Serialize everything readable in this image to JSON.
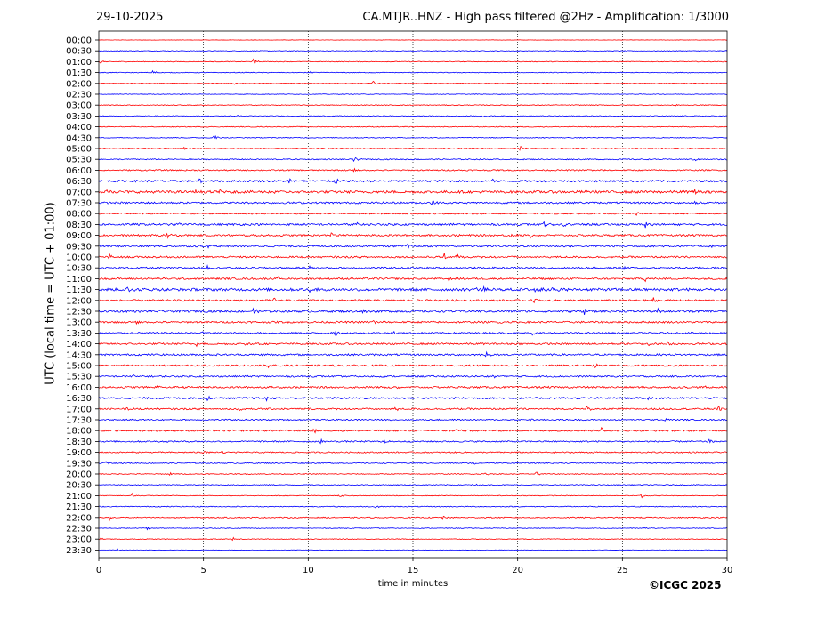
{
  "header": {
    "date": "29-10-2025",
    "title": "CA.MTJR..HNZ - High pass filtered @2Hz - Amplification: 1/3000"
  },
  "footer": {
    "copyright": "©ICGC 2025"
  },
  "chart_data": {
    "type": "line",
    "title": "CA.MTJR..HNZ - High pass filtered @2Hz - Amplification: 1/3000",
    "xlabel": "time in minutes",
    "ylabel": "UTC (local time = UTC + 01:00)",
    "xlim": [
      0,
      30
    ],
    "x_ticks": [
      0,
      5,
      10,
      15,
      20,
      25,
      30
    ],
    "grid": "vertical dotted at each x tick",
    "colors": {
      "even_row": "#ff0000",
      "odd_row": "#0000ff"
    },
    "rows": [
      "00:00",
      "00:30",
      "01:00",
      "01:30",
      "02:00",
      "02:30",
      "03:00",
      "03:30",
      "04:00",
      "04:30",
      "05:00",
      "05:30",
      "06:00",
      "06:30",
      "07:00",
      "07:30",
      "08:00",
      "08:30",
      "09:00",
      "09:30",
      "10:00",
      "10:30",
      "11:00",
      "11:30",
      "12:00",
      "12:30",
      "13:00",
      "13:30",
      "14:00",
      "14:30",
      "15:00",
      "15:30",
      "16:00",
      "16:30",
      "17:00",
      "17:30",
      "18:00",
      "18:30",
      "19:00",
      "19:30",
      "20:00",
      "20:30",
      "21:00",
      "21:30",
      "22:00",
      "22:30",
      "23:00",
      "23:30"
    ],
    "noise_level": [
      0.04,
      0.07,
      0.08,
      0.08,
      0.07,
      0.07,
      0.09,
      0.09,
      0.09,
      0.09,
      0.1,
      0.12,
      0.14,
      0.22,
      0.28,
      0.2,
      0.14,
      0.22,
      0.2,
      0.2,
      0.2,
      0.18,
      0.2,
      0.3,
      0.2,
      0.24,
      0.2,
      0.18,
      0.2,
      0.2,
      0.18,
      0.18,
      0.2,
      0.2,
      0.18,
      0.14,
      0.18,
      0.16,
      0.14,
      0.12,
      0.1,
      0.1,
      0.08,
      0.1,
      0.12,
      0.08,
      0.08,
      0.05
    ],
    "events": [
      {
        "row": "00:30",
        "minute": 0.9,
        "amp": 0.3
      },
      {
        "row": "00:30",
        "minute": 30,
        "amp": 0.4
      },
      {
        "row": "01:00",
        "minute": 7.4,
        "amp": 0.8
      },
      {
        "row": "01:00",
        "minute": 0.1,
        "amp": 0.4
      },
      {
        "row": "01:30",
        "minute": 2.6,
        "amp": 0.7
      },
      {
        "row": "01:30",
        "minute": 10.1,
        "amp": 0.3
      },
      {
        "row": "02:00",
        "minute": 13.1,
        "amp": 0.8
      },
      {
        "row": "02:00",
        "minute": 6.5,
        "amp": 0.3
      },
      {
        "row": "02:30",
        "minute": 3.9,
        "amp": 0.3
      },
      {
        "row": "03:00",
        "minute": 27.5,
        "amp": 0.4
      },
      {
        "row": "03:30",
        "minute": 6.5,
        "amp": 0.3
      },
      {
        "row": "03:30",
        "minute": 18.3,
        "amp": 0.3
      },
      {
        "row": "04:30",
        "minute": 5.5,
        "amp": 1.0
      },
      {
        "row": "05:00",
        "minute": 4.1,
        "amp": 0.7
      },
      {
        "row": "05:00",
        "minute": 20.1,
        "amp": 0.8
      },
      {
        "row": "05:30",
        "minute": 12.2,
        "amp": 0.7
      },
      {
        "row": "05:30",
        "minute": 28.4,
        "amp": 0.8
      },
      {
        "row": "05:30",
        "minute": 30,
        "amp": 0.6
      },
      {
        "row": "06:00",
        "minute": 12.2,
        "amp": 0.5
      },
      {
        "row": "06:00",
        "minute": 23.3,
        "amp": 0.6
      },
      {
        "row": "06:30",
        "minute": 9.1,
        "amp": 0.9
      },
      {
        "row": "06:30",
        "minute": 11.3,
        "amp": 0.7
      },
      {
        "row": "06:30",
        "minute": 18.8,
        "amp": 0.6
      },
      {
        "row": "06:30",
        "minute": 4.8,
        "amp": 0.6
      },
      {
        "row": "07:00",
        "minute": 0.4,
        "amp": 0.8
      },
      {
        "row": "07:00",
        "minute": 4.6,
        "amp": 0.8
      },
      {
        "row": "07:00",
        "minute": 5.7,
        "amp": 0.8
      },
      {
        "row": "07:00",
        "minute": 8.4,
        "amp": 0.6
      },
      {
        "row": "07:00",
        "minute": 28.4,
        "amp": 0.6
      },
      {
        "row": "07:30",
        "minute": 15.9,
        "amp": 0.9
      },
      {
        "row": "07:30",
        "minute": 28.4,
        "amp": 0.6
      },
      {
        "row": "08:00",
        "minute": 25.7,
        "amp": 0.5
      },
      {
        "row": "08:00",
        "minute": 11.1,
        "amp": 0.4
      },
      {
        "row": "08:30",
        "minute": 3.8,
        "amp": 0.6
      },
      {
        "row": "08:30",
        "minute": 21.3,
        "amp": 0.9
      },
      {
        "row": "08:30",
        "minute": 22.1,
        "amp": 0.8
      },
      {
        "row": "08:30",
        "minute": 26.1,
        "amp": 0.9
      },
      {
        "row": "08:30",
        "minute": 12.3,
        "amp": 0.5
      },
      {
        "row": "09:00",
        "minute": 3.3,
        "amp": 0.6
      },
      {
        "row": "09:00",
        "minute": 11.1,
        "amp": 0.8
      },
      {
        "row": "09:00",
        "minute": 19.7,
        "amp": 0.6
      },
      {
        "row": "09:00",
        "minute": 20.6,
        "amp": 0.6
      },
      {
        "row": "09:30",
        "minute": 5.2,
        "amp": 0.7
      },
      {
        "row": "09:30",
        "minute": 14.7,
        "amp": 0.7
      },
      {
        "row": "09:30",
        "minute": 29.3,
        "amp": 0.6
      },
      {
        "row": "10:00",
        "minute": 0.5,
        "amp": 0.7
      },
      {
        "row": "10:00",
        "minute": 16.5,
        "amp": 0.7
      },
      {
        "row": "10:00",
        "minute": 17.1,
        "amp": 0.8
      },
      {
        "row": "10:30",
        "minute": 10,
        "amp": 0.8
      },
      {
        "row": "10:30",
        "minute": 5.2,
        "amp": 0.5
      },
      {
        "row": "10:30",
        "minute": 25,
        "amp": 0.5
      },
      {
        "row": "11:00",
        "minute": 8.5,
        "amp": 0.6
      },
      {
        "row": "11:00",
        "minute": 16.7,
        "amp": 0.7
      },
      {
        "row": "11:00",
        "minute": 26.1,
        "amp": 0.7
      },
      {
        "row": "11:00",
        "minute": 30,
        "amp": 0.6
      },
      {
        "row": "11:30",
        "minute": 1.4,
        "amp": 0.8
      },
      {
        "row": "11:30",
        "minute": 10.1,
        "amp": 0.7
      },
      {
        "row": "11:30",
        "minute": 18,
        "amp": 0.9
      },
      {
        "row": "11:30",
        "minute": 18.4,
        "amp": 0.8
      },
      {
        "row": "11:30",
        "minute": 20.8,
        "amp": 1.0
      },
      {
        "row": "11:30",
        "minute": 21.2,
        "amp": 0.9
      },
      {
        "row": "11:30",
        "minute": 21.7,
        "amp": 0.8
      },
      {
        "row": "12:00",
        "minute": 8.4,
        "amp": 0.7
      },
      {
        "row": "12:00",
        "minute": 15.5,
        "amp": 0.6
      },
      {
        "row": "12:00",
        "minute": 20.8,
        "amp": 0.7
      },
      {
        "row": "12:00",
        "minute": 26.5,
        "amp": 0.7
      },
      {
        "row": "12:30",
        "minute": 7.4,
        "amp": 0.8
      },
      {
        "row": "12:30",
        "minute": 12.6,
        "amp": 0.8
      },
      {
        "row": "12:30",
        "minute": 23.2,
        "amp": 0.7
      },
      {
        "row": "12:30",
        "minute": 26.7,
        "amp": 0.6
      },
      {
        "row": "13:00",
        "minute": 1.8,
        "amp": 0.6
      },
      {
        "row": "13:00",
        "minute": 13.1,
        "amp": 0.6
      },
      {
        "row": "13:00",
        "minute": 19.2,
        "amp": 0.5
      },
      {
        "row": "13:30",
        "minute": 11.3,
        "amp": 0.9
      },
      {
        "row": "13:30",
        "minute": 14.1,
        "amp": 0.6
      },
      {
        "row": "13:30",
        "minute": 4.9,
        "amp": 0.5
      },
      {
        "row": "13:30",
        "minute": 20.7,
        "amp": 0.5
      },
      {
        "row": "14:00",
        "minute": 6.9,
        "amp": 0.7
      },
      {
        "row": "14:00",
        "minute": 4.7,
        "amp": 0.6
      },
      {
        "row": "14:00",
        "minute": 26.2,
        "amp": 0.6
      },
      {
        "row": "14:00",
        "minute": 27.2,
        "amp": 0.6
      },
      {
        "row": "14:30",
        "minute": 7.9,
        "amp": 0.5
      },
      {
        "row": "14:30",
        "minute": 18.5,
        "amp": 0.5
      },
      {
        "row": "15:00",
        "minute": 23.7,
        "amp": 0.8
      },
      {
        "row": "15:00",
        "minute": 8.1,
        "amp": 0.5
      },
      {
        "row": "15:30",
        "minute": 18.8,
        "amp": 0.8
      },
      {
        "row": "15:30",
        "minute": 1.6,
        "amp": 0.5
      },
      {
        "row": "16:00",
        "minute": 2.8,
        "amp": 0.7
      },
      {
        "row": "16:00",
        "minute": 14.2,
        "amp": 0.5
      },
      {
        "row": "16:00",
        "minute": 29,
        "amp": 0.5
      },
      {
        "row": "16:30",
        "minute": 5.2,
        "amp": 0.7
      },
      {
        "row": "16:30",
        "minute": 8,
        "amp": 0.6
      },
      {
        "row": "16:30",
        "minute": 26.2,
        "amp": 0.5
      },
      {
        "row": "17:00",
        "minute": 1.3,
        "amp": 0.8
      },
      {
        "row": "17:00",
        "minute": 6.7,
        "amp": 0.8
      },
      {
        "row": "17:00",
        "minute": 14.1,
        "amp": 0.8
      },
      {
        "row": "17:00",
        "minute": 23.3,
        "amp": 0.9
      },
      {
        "row": "17:00",
        "minute": 29.6,
        "amp": 0.6
      },
      {
        "row": "17:30",
        "minute": 20.6,
        "amp": 0.5
      },
      {
        "row": "17:30",
        "minute": 27,
        "amp": 0.5
      },
      {
        "row": "18:00",
        "minute": 10.3,
        "amp": 0.6
      },
      {
        "row": "18:00",
        "minute": 17.1,
        "amp": 0.6
      },
      {
        "row": "18:00",
        "minute": 24,
        "amp": 0.7
      },
      {
        "row": "18:30",
        "minute": 10.6,
        "amp": 0.5
      },
      {
        "row": "18:30",
        "minute": 13.6,
        "amp": 0.5
      },
      {
        "row": "18:30",
        "minute": 29.1,
        "amp": 0.5
      },
      {
        "row": "19:00",
        "minute": 5.9,
        "amp": 0.5
      },
      {
        "row": "19:00",
        "minute": 5,
        "amp": 0.4
      },
      {
        "row": "19:30",
        "minute": 0.3,
        "amp": 0.6
      },
      {
        "row": "19:30",
        "minute": 17.9,
        "amp": 0.5
      },
      {
        "row": "20:00",
        "minute": 3.4,
        "amp": 0.5
      },
      {
        "row": "20:00",
        "minute": 18.4,
        "amp": 0.6
      },
      {
        "row": "20:00",
        "minute": 20.9,
        "amp": 0.5
      },
      {
        "row": "20:30",
        "minute": 17.9,
        "amp": 0.6
      },
      {
        "row": "21:00",
        "minute": 1.6,
        "amp": 0.6
      },
      {
        "row": "21:00",
        "minute": 25.9,
        "amp": 0.6
      },
      {
        "row": "21:00",
        "minute": 11.5,
        "amp": 0.4
      },
      {
        "row": "21:30",
        "minute": 13.2,
        "amp": 0.5
      },
      {
        "row": "22:00",
        "minute": 0.5,
        "amp": 0.6
      },
      {
        "row": "22:00",
        "minute": 16.4,
        "amp": 0.5
      },
      {
        "row": "22:30",
        "minute": 2.3,
        "amp": 0.4
      },
      {
        "row": "22:30",
        "minute": 26.1,
        "amp": 0.4
      },
      {
        "row": "23:00",
        "minute": 6.4,
        "amp": 0.4
      },
      {
        "row": "23:00",
        "minute": 0.1,
        "amp": 0.4
      },
      {
        "row": "23:30",
        "minute": 0.9,
        "amp": 0.3
      }
    ]
  }
}
